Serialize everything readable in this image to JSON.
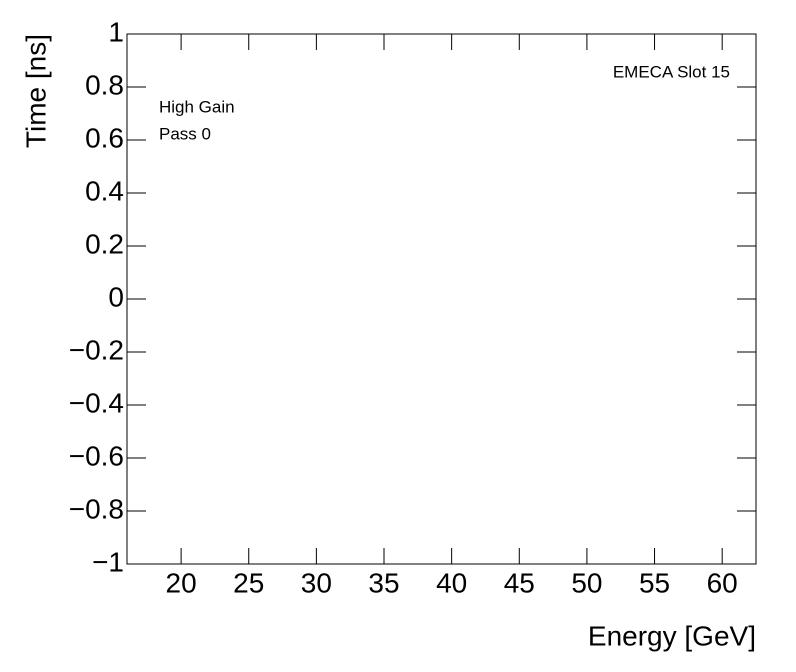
{
  "chart_data": {
    "type": "scatter",
    "title": "EMECA Slot 15",
    "annotations": [
      "High Gain",
      "Pass 0"
    ],
    "x_label": "Energy [GeV]",
    "y_label": "Time [ns]",
    "x": [],
    "series": [],
    "xlim": [
      16,
      62.5
    ],
    "xticks": [
      20,
      25,
      30,
      35,
      40,
      45,
      50,
      55,
      60
    ],
    "ylim": [
      -1,
      1
    ],
    "yticks": [
      {
        "value": -1,
        "label": "−1"
      },
      {
        "value": -0.8,
        "label": "−0.8"
      },
      {
        "value": -0.6,
        "label": "−0.6"
      },
      {
        "value": -0.4,
        "label": "−0.4"
      },
      {
        "value": -0.2,
        "label": "−0.2"
      },
      0,
      0.2,
      0.4,
      0.6,
      0.8,
      1
    ]
  }
}
